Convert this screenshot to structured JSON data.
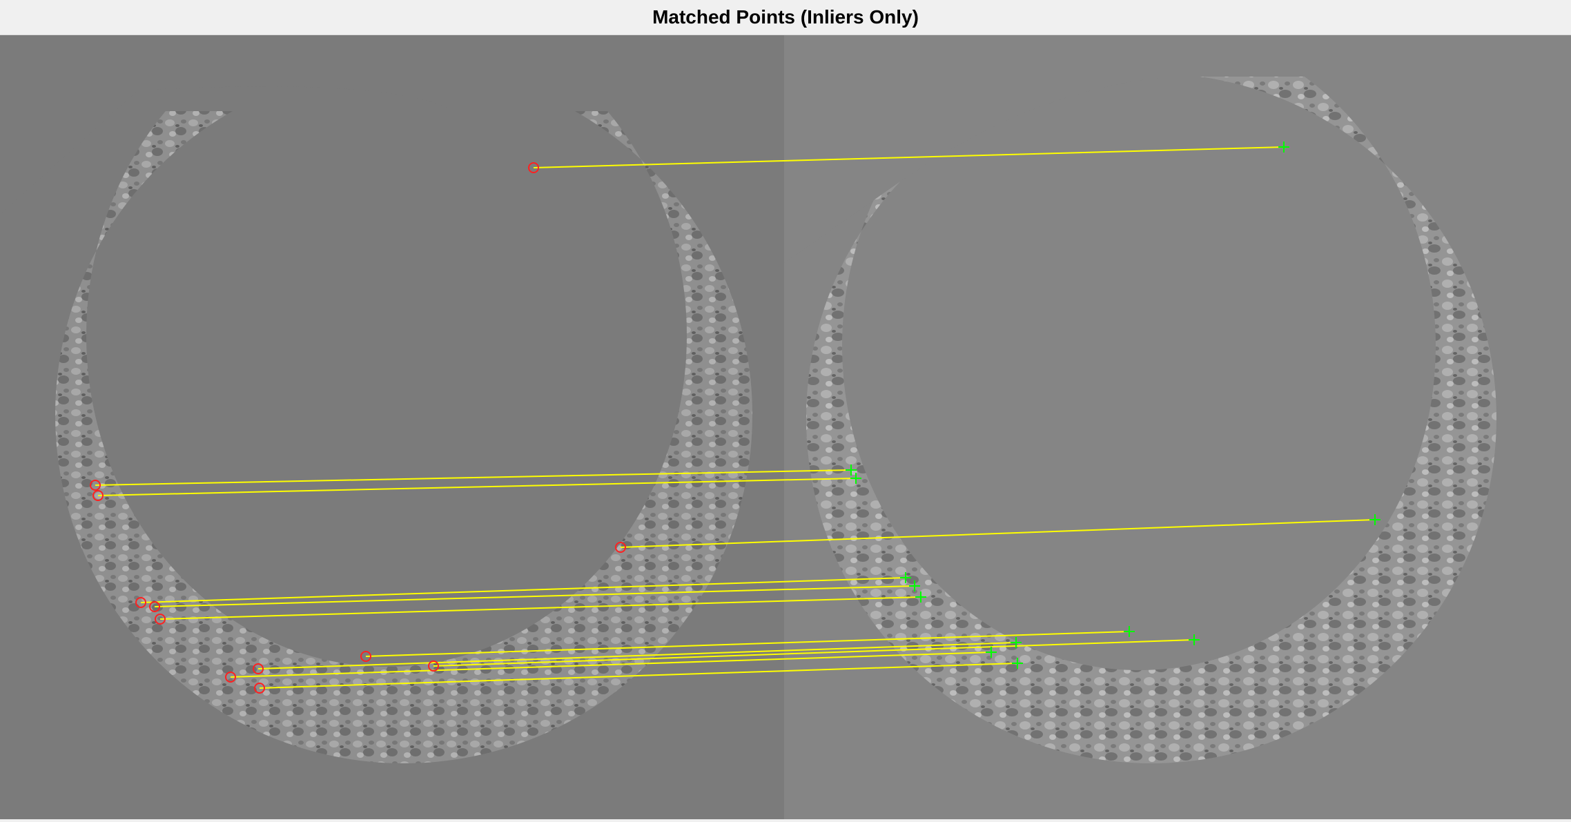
{
  "figure": {
    "title": "Matched Points (Inliers Only)"
  },
  "colors": {
    "left_background": "#7b7b7b",
    "right_background": "#858585",
    "match_line": "#ffff00",
    "left_marker": "#ff2020",
    "right_marker": "#00ff00"
  },
  "legend": {
    "left_marker": "red circle",
    "right_marker": "green plus"
  }
}
